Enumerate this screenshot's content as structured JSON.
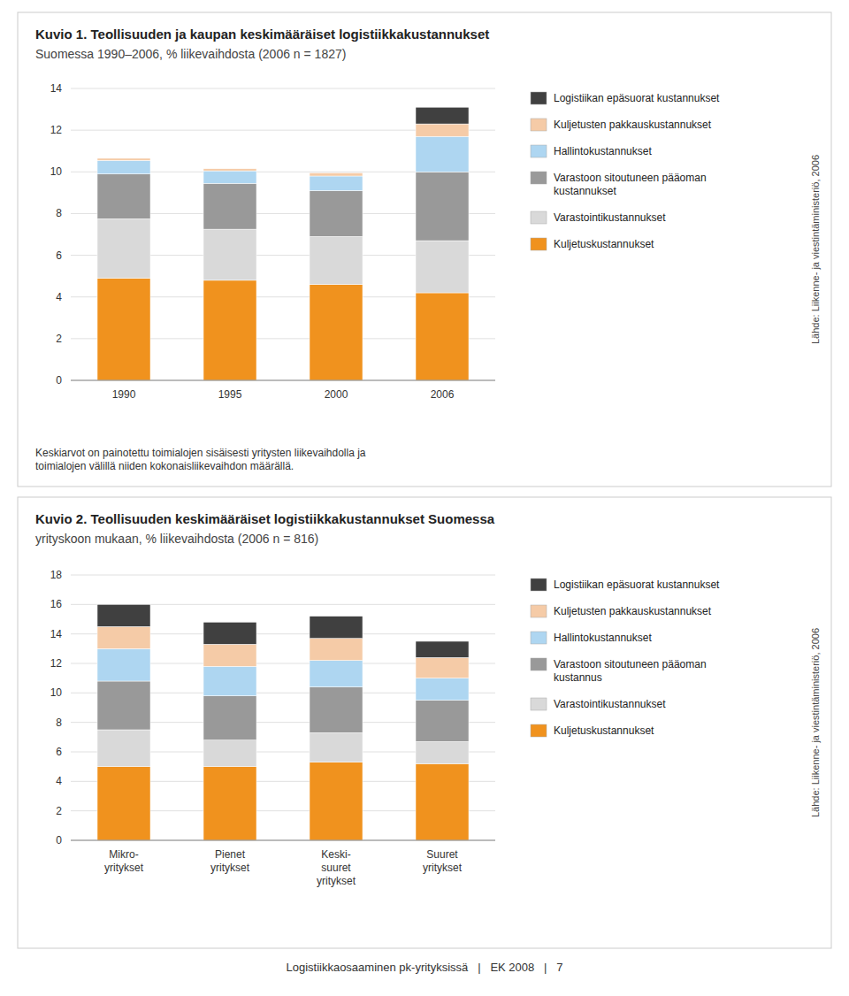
{
  "chart_data": [
    {
      "type": "bar",
      "stacked": true,
      "grid": true,
      "legend": "right",
      "title": "Kuvio 1. Teollisuuden ja kaupan keskimääräiset logistiikkakustannukset",
      "subtitle": "Suomessa 1990–2006, % liikevaihdosta (2006 n = 1827)",
      "categories": [
        "1990",
        "1995",
        "2000",
        "2006"
      ],
      "series": [
        {
          "name": "Kuljetuskustannukset",
          "color": "#f0921e",
          "values": [
            4.9,
            4.8,
            4.6,
            4.2
          ]
        },
        {
          "name": "Varastointikustannukset",
          "color": "#d9d9d9",
          "values": [
            2.85,
            2.45,
            2.3,
            2.5
          ]
        },
        {
          "name": "Varastoon sitoutuneen pääoman\nkustannukset",
          "color": "#999999",
          "values": [
            2.15,
            2.2,
            2.2,
            3.3
          ]
        },
        {
          "name": "Hallintokustannukset",
          "color": "#aed6f1",
          "values": [
            0.65,
            0.6,
            0.7,
            1.7
          ]
        },
        {
          "name": "Kuljetusten pakkauskustannukset",
          "color": "#f5cba7",
          "values": [
            0.1,
            0.1,
            0.15,
            0.6
          ]
        },
        {
          "name": "Logistiikan epäsuorat kustannukset",
          "color": "#404040",
          "values": [
            0.0,
            0.0,
            0.0,
            0.8
          ]
        }
      ],
      "ylim": [
        0,
        14
      ],
      "yticks": [
        0,
        2,
        4,
        6,
        8,
        10,
        12,
        14
      ],
      "footnote": "Keskiarvot on painotettu toimialojen sisäisesti yritysten liikevaihdolla ja\ntoimialojen välillä niiden kokonaisliikevaihdon määrällä.",
      "source": "Lähde: Liikenne- ja viestintäministeriö, 2006"
    },
    {
      "type": "bar",
      "stacked": true,
      "grid": true,
      "legend": "right",
      "title": "Kuvio 2. Teollisuuden keskimääräiset logistiikkakustannukset Suomessa",
      "subtitle": "yrityskoon mukaan, % liikevaihdosta (2006 n = 816)",
      "categories": [
        "Mikro-\nyritykset",
        "Pienet\nyritykset",
        "Keski-\nsuuret\nyritykset",
        "Suuret\nyritykset"
      ],
      "series": [
        {
          "name": "Kuljetuskustannukset",
          "color": "#f0921e",
          "values": [
            5.0,
            5.0,
            5.3,
            5.2
          ]
        },
        {
          "name": "Varastointikustannukset",
          "color": "#d9d9d9",
          "values": [
            2.5,
            1.8,
            2.0,
            1.5
          ]
        },
        {
          "name": "Varastoon sitoutuneen pääoman\nkustannus",
          "color": "#999999",
          "values": [
            3.3,
            3.0,
            3.1,
            2.8
          ]
        },
        {
          "name": "Hallintokustannukset",
          "color": "#aed6f1",
          "values": [
            2.2,
            2.0,
            1.8,
            1.5
          ]
        },
        {
          "name": "Kuljetusten pakkauskustannukset",
          "color": "#f5cba7",
          "values": [
            1.5,
            1.5,
            1.5,
            1.4
          ]
        },
        {
          "name": "Logistiikan epäsuorat kustannukset",
          "color": "#404040",
          "values": [
            1.5,
            1.5,
            1.5,
            1.1
          ]
        }
      ],
      "ylim": [
        0,
        18
      ],
      "yticks": [
        0,
        2,
        4,
        6,
        8,
        10,
        12,
        14,
        16,
        18
      ],
      "source": "Lähde: Liikenne- ja viestintäministeriö, 2006"
    }
  ],
  "footer": "Logistiikkaosaaminen pk-yrityksissä   |   EK 2008   |   7"
}
